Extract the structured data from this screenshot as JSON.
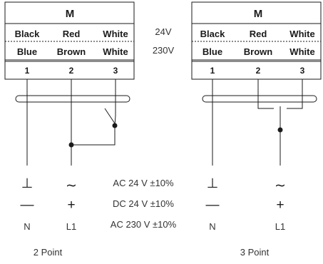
{
  "left_diagram": {
    "header": "M",
    "row_24v": [
      "Black",
      "Red",
      "White"
    ],
    "row_230v": [
      "Blue",
      "Brown",
      "White"
    ],
    "terminals": [
      "1",
      "2",
      "3"
    ],
    "symbols": [
      [
        "⊥",
        "∼"
      ],
      [
        "—",
        "+"
      ],
      [
        "N",
        "L1"
      ]
    ],
    "caption": "2 Point"
  },
  "right_diagram": {
    "header": "M",
    "row_24v": [
      "Black",
      "Red",
      "White"
    ],
    "row_230v": [
      "Blue",
      "Brown",
      "White"
    ],
    "terminals": [
      "1",
      "2",
      "3"
    ],
    "symbols": [
      [
        "⊥",
        "∼"
      ],
      [
        "—",
        "+"
      ],
      [
        "N",
        "L1"
      ]
    ],
    "caption": "3 Point"
  },
  "voltage_labels": [
    "24V",
    "230V"
  ],
  "supply_specs": [
    "AC 24 V ±10%",
    "DC 24 V ±10%",
    "AC 230 V ±10%"
  ]
}
